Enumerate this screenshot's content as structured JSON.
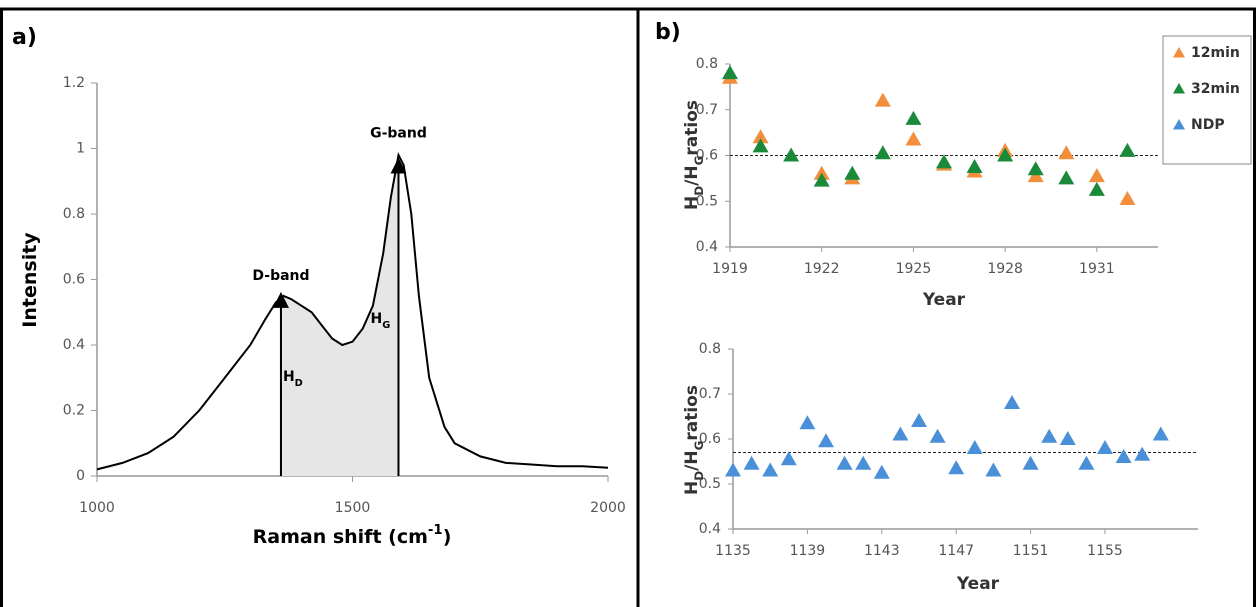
{
  "panels": [
    "a)",
    "b)"
  ],
  "chart_data": [
    {
      "type": "line",
      "x": [
        1000,
        1050,
        1100,
        1150,
        1200,
        1250,
        1300,
        1330,
        1350,
        1365,
        1380,
        1400,
        1420,
        1440,
        1460,
        1480,
        1500,
        1520,
        1540,
        1560,
        1575,
        1590,
        1600,
        1615,
        1630,
        1650,
        1680,
        1700,
        1750,
        1800,
        1850,
        1900,
        1950,
        2000
      ],
      "values": [
        0.02,
        0.04,
        0.07,
        0.12,
        0.2,
        0.3,
        0.4,
        0.48,
        0.53,
        0.55,
        0.54,
        0.52,
        0.5,
        0.46,
        0.42,
        0.4,
        0.41,
        0.45,
        0.52,
        0.68,
        0.85,
        0.98,
        0.95,
        0.8,
        0.55,
        0.3,
        0.15,
        0.1,
        0.06,
        0.04,
        0.035,
        0.03,
        0.03,
        0.025
      ],
      "color": "#000000",
      "xlim": [
        1000,
        2000
      ],
      "ylim": [
        0,
        1.2
      ],
      "xticks": [
        1000,
        1500,
        2000
      ],
      "yticks": [
        0,
        0.2,
        0.4,
        0.6,
        0.8,
        1,
        1.2
      ],
      "xlabel": [
        {
          "text": "Raman shift (cm"
        },
        {
          "text": "-1",
          "sup": true
        },
        {
          "text": ")"
        }
      ],
      "ylabel": [
        {
          "text": "Intensity"
        }
      ],
      "shade": [
        1360,
        1590
      ],
      "shade_color": "#e6e6e6",
      "peaks": [
        {
          "label": "D-band",
          "height_label": [
            {
              "text": "H"
            },
            {
              "text": "D",
              "sub": true
            }
          ],
          "x": 1360,
          "y": 0.55
        },
        {
          "label": "G-band",
          "height_label": [
            {
              "text": "H"
            },
            {
              "text": "G",
              "sub": true
            }
          ],
          "x": 1590,
          "y": 0.96
        }
      ]
    },
    {
      "type": "scatter",
      "x": [
        1919,
        1920,
        1921,
        1922,
        1923,
        1924,
        1925,
        1926,
        1927,
        1928,
        1929,
        1930,
        1931,
        1932
      ],
      "series": [
        {
          "name": "12min",
          "color": "#f28e3c",
          "values": [
            0.77,
            0.64,
            null,
            0.56,
            0.55,
            0.72,
            0.635,
            0.58,
            0.565,
            0.61,
            0.555,
            0.605,
            0.555,
            0.505
          ]
        },
        {
          "name": "32min",
          "color": "#1a8a3a",
          "values": [
            0.78,
            0.62,
            0.6,
            0.545,
            0.56,
            0.605,
            0.68,
            0.585,
            0.575,
            0.6,
            0.57,
            0.55,
            0.525,
            0.61
          ]
        }
      ],
      "xlim": [
        1919,
        1933
      ],
      "ylim": [
        0.4,
        0.8
      ],
      "xticks": [
        1919,
        1922,
        1925,
        1928,
        1931
      ],
      "yticks": [
        0.4,
        0.5,
        0.6,
        0.7,
        0.8
      ],
      "xlabel": [
        {
          "text": "Year"
        }
      ],
      "ylabel": [
        {
          "text": "H"
        },
        {
          "text": "D",
          "sub": true
        },
        {
          "text": "/H"
        },
        {
          "text": "G",
          "sub": true
        },
        {
          "text": "ratios"
        }
      ],
      "reference": 0.6,
      "legend": "upper right"
    },
    {
      "type": "scatter",
      "x": [
        1135,
        1136,
        1137,
        1138,
        1139,
        1140,
        1141,
        1142,
        1143,
        1144,
        1145,
        1146,
        1147,
        1148,
        1149,
        1150,
        1151,
        1152,
        1153,
        1154,
        1155,
        1156,
        1157,
        1158
      ],
      "series": [
        {
          "name": "NDP",
          "color": "#4a90d9",
          "values": [
            0.53,
            0.545,
            0.53,
            0.555,
            0.635,
            0.595,
            0.545,
            0.545,
            0.525,
            0.61,
            0.64,
            0.605,
            0.535,
            0.58,
            0.53,
            0.68,
            0.545,
            0.605,
            0.6,
            0.545,
            0.58,
            0.56,
            0.565,
            0.61
          ]
        }
      ],
      "xlim": [
        1135,
        1160
      ],
      "ylim": [
        0.4,
        0.8
      ],
      "xticks": [
        1135,
        1139,
        1143,
        1147,
        1151,
        1155
      ],
      "yticks": [
        0.4,
        0.5,
        0.6,
        0.7,
        0.8
      ],
      "xlabel": [
        {
          "text": "Year"
        }
      ],
      "ylabel": [
        {
          "text": "H"
        },
        {
          "text": "D",
          "sub": true
        },
        {
          "text": "/H"
        },
        {
          "text": "G",
          "sub": true
        },
        {
          "text": "ratios"
        }
      ],
      "reference": 0.57
    }
  ]
}
